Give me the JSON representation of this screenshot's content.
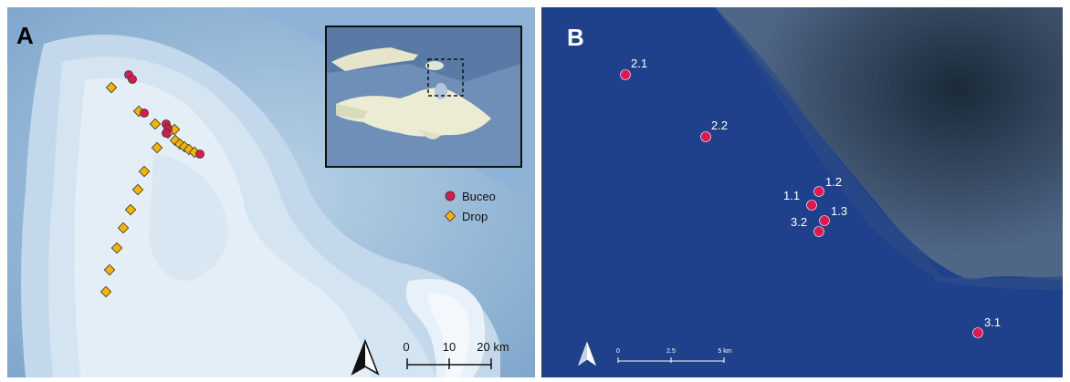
{
  "panel_a": {
    "label": "A",
    "legend": [
      {
        "label": "Buceo",
        "color": "#d81b4d",
        "shape": "circle"
      },
      {
        "label": "Drop",
        "color": "#f4b400",
        "shape": "diamond"
      }
    ],
    "scale_bar": {
      "ticks": [
        "0",
        "10",
        "20 km"
      ]
    },
    "north_arrow_icon": "north-arrow-icon"
  },
  "panel_b": {
    "label": "B",
    "sites": [
      "2.1",
      "2.2",
      "1.2",
      "1.1",
      "1.3",
      "3.2",
      "3.1"
    ],
    "scale_bar": {
      "ticks": [
        "0",
        "2.5",
        "5 km"
      ]
    },
    "north_arrow_icon": "north-arrow-icon"
  }
}
